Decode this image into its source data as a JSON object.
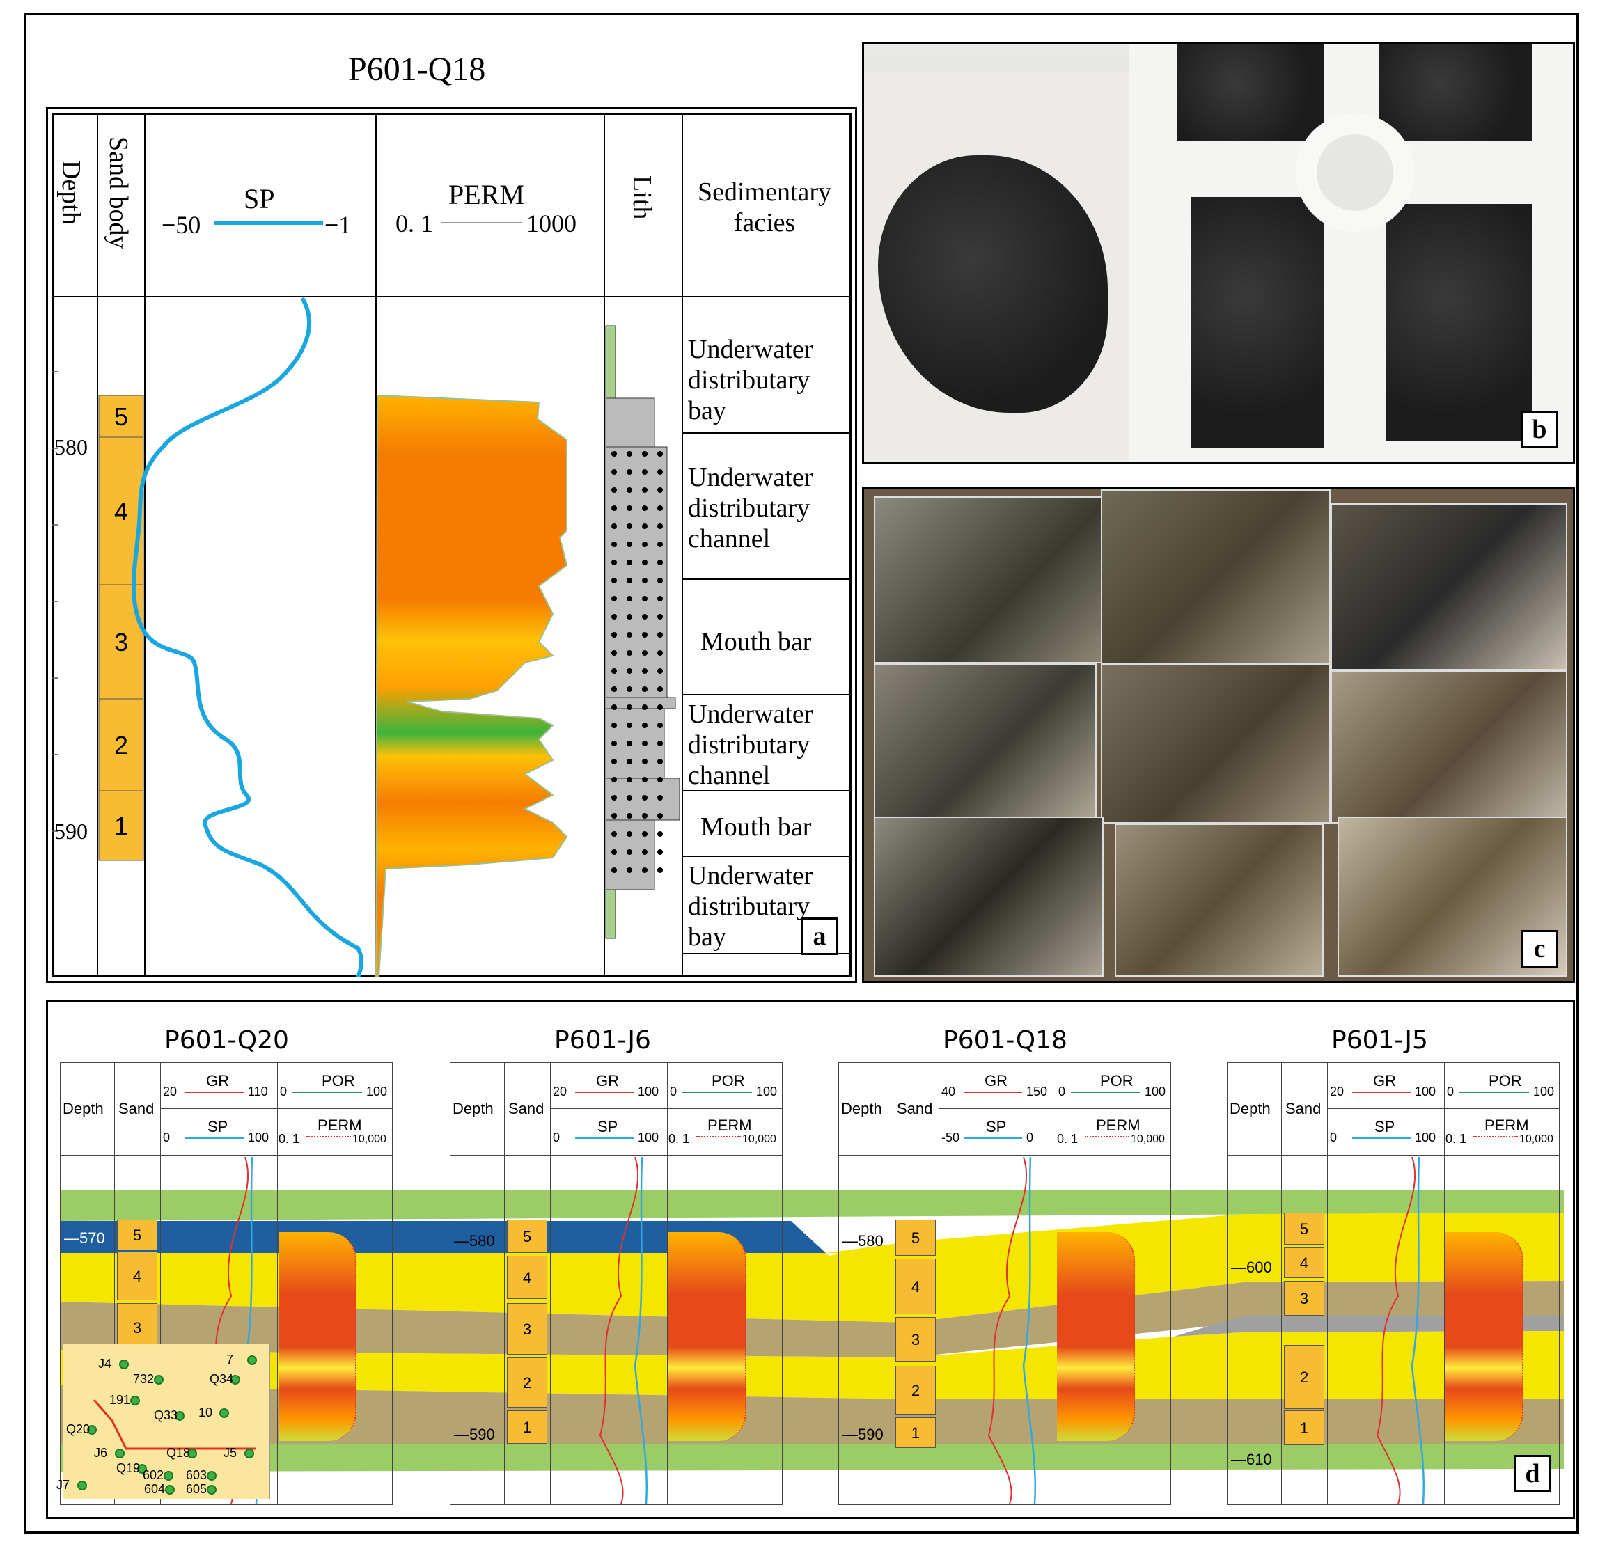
{
  "panel_a": {
    "title": "P601-Q18",
    "letter": "a",
    "headers": {
      "depth": "Depth",
      "sand": "Sand body",
      "sp": "SP",
      "sp_min": "−50",
      "sp_max": "−1",
      "perm": "PERM",
      "perm_min": "0. 1",
      "perm_max": "1000",
      "lith": "Lith",
      "facies": "Sedimentary facies"
    },
    "depths": [
      "580",
      "590"
    ],
    "sand_bodies": [
      "5",
      "4",
      "3",
      "2",
      "1"
    ],
    "facies": [
      "Underwater distributary bay",
      "Underwater distributary channel",
      "Mouth bar",
      "Underwater distributary channel",
      "Mouth bar",
      "Underwater distributary bay"
    ],
    "colors": {
      "sp_curve": "#1aa7e0",
      "sand": "#f7bc33",
      "perm_hi": "#f57c00",
      "perm_lo": "#ffc107",
      "perm_low_green": "#3db33d"
    }
  },
  "panel_b": {
    "letter": "b"
  },
  "panel_c": {
    "letter": "c"
  },
  "panel_d": {
    "letter": "d",
    "col_depth": "Depth",
    "col_sand": "Sand",
    "wells": [
      {
        "name": "P601-Q20",
        "gr_min": "20",
        "gr_max": "110",
        "sp_min": "0",
        "sp_max": "100",
        "depths": [
          "570"
        ]
      },
      {
        "name": "P601-J6",
        "gr_min": "20",
        "gr_max": "100",
        "sp_min": "0",
        "sp_max": "100",
        "depths": [
          "580",
          "590"
        ]
      },
      {
        "name": "P601-Q18",
        "gr_min": "40",
        "gr_max": "150",
        "sp_min": "-50",
        "sp_max": "0",
        "depths": [
          "580",
          "590"
        ]
      },
      {
        "name": "P601-J5",
        "gr_min": "20",
        "gr_max": "100",
        "sp_min": "0",
        "sp_max": "100",
        "depths": [
          "600",
          "610"
        ]
      }
    ],
    "gr_label": "GR",
    "sp_label": "SP",
    "por_label": "POR",
    "por_min": "0",
    "por_max": "100",
    "perm_label": "PERM",
    "perm_min": "0. 1",
    "perm_max": "10,000",
    "sand_numbers": [
      "5",
      "4",
      "3",
      "2",
      "1"
    ],
    "map_wells": [
      "J4",
      "7",
      "732",
      "Q34",
      "191",
      "10",
      "Q33",
      "Q20",
      "Q18",
      "J5",
      "J6",
      "Q19",
      "602",
      "603",
      "J7",
      "604",
      "605"
    ],
    "colors": {
      "sand": "#f5e600",
      "mud": "#b5a372",
      "green": "#9ccc65",
      "blue": "#1f5fa0",
      "grey": "#a0a0a0",
      "map_bg": "#fbe6a0",
      "map_dot": "#3cb043",
      "map_line": "#e03020"
    }
  }
}
